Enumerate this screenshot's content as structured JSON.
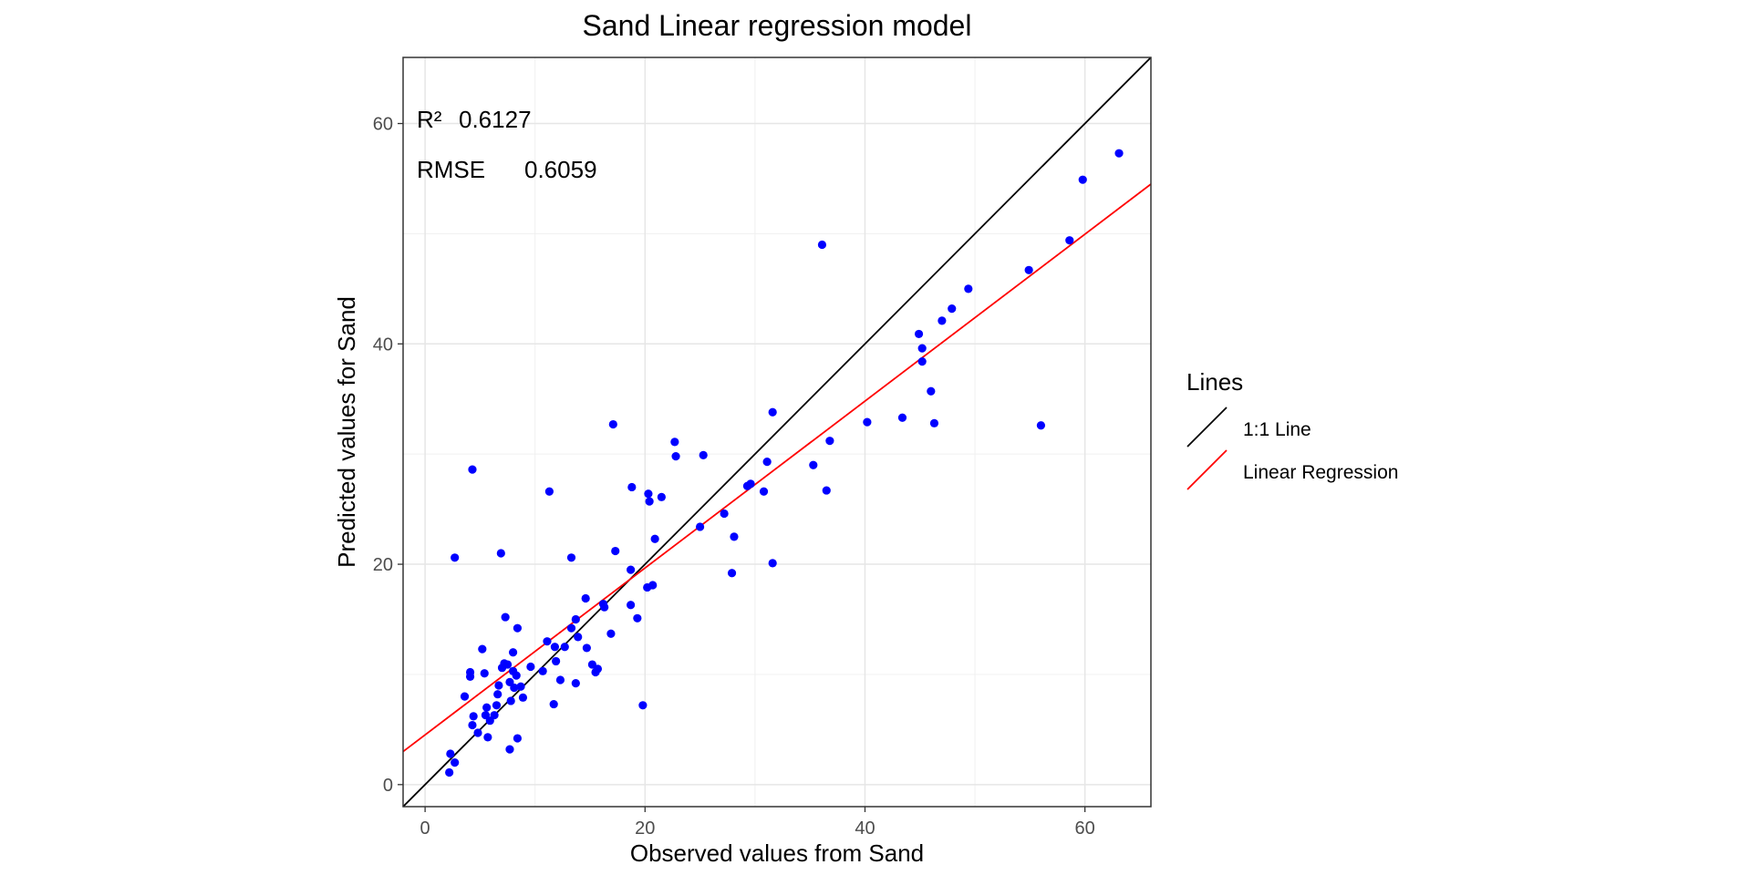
{
  "chart_data": {
    "type": "scatter",
    "title": "Sand  Linear regression model",
    "xlabel": "Observed values from Sand",
    "ylabel": "Predicted values for Sand",
    "xlim": [
      -2,
      66
    ],
    "ylim": [
      -2,
      66
    ],
    "x_ticks": [
      0,
      20,
      40,
      60
    ],
    "y_ticks": [
      0,
      20,
      40,
      60
    ],
    "grid": true,
    "point_color": "#0000ff",
    "annotations": {
      "r2_label": "R²",
      "r2_value": "0.6127",
      "rmse_label": "RMSE",
      "rmse_value": "0.6059"
    },
    "legend": {
      "title": "Lines",
      "placement": "right",
      "items": [
        {
          "label": "1:1 Line",
          "color": "#000000"
        },
        {
          "label": "Linear Regression",
          "color": "#ff0000"
        }
      ]
    },
    "lines": [
      {
        "name": "1:1 Line",
        "color": "#000000",
        "x": [
          -2,
          66
        ],
        "y": [
          -2,
          66
        ]
      },
      {
        "name": "Linear Regression",
        "color": "#ff0000",
        "x": [
          -2,
          66
        ],
        "y": [
          3,
          54.5
        ]
      }
    ],
    "points": [
      [
        2.2,
        1.1
      ],
      [
        2.3,
        2.8
      ],
      [
        2.7,
        2.0
      ],
      [
        2.7,
        20.6
      ],
      [
        3.6,
        8.0
      ],
      [
        4.1,
        9.8
      ],
      [
        4.1,
        10.2
      ],
      [
        4.3,
        5.4
      ],
      [
        4.3,
        28.6
      ],
      [
        4.4,
        6.2
      ],
      [
        4.8,
        4.7
      ],
      [
        5.2,
        12.3
      ],
      [
        5.4,
        10.1
      ],
      [
        5.5,
        6.3
      ],
      [
        5.6,
        7.0
      ],
      [
        5.7,
        4.3
      ],
      [
        5.9,
        5.8
      ],
      [
        6.3,
        6.3
      ],
      [
        6.5,
        7.2
      ],
      [
        6.6,
        8.2
      ],
      [
        6.7,
        9.0
      ],
      [
        6.9,
        21.0
      ],
      [
        7.0,
        10.6
      ],
      [
        7.2,
        11.0
      ],
      [
        7.3,
        15.2
      ],
      [
        7.5,
        10.9
      ],
      [
        7.7,
        3.2
      ],
      [
        7.7,
        9.3
      ],
      [
        7.8,
        7.6
      ],
      [
        8.0,
        10.3
      ],
      [
        8.0,
        12.0
      ],
      [
        8.1,
        8.8
      ],
      [
        8.3,
        9.9
      ],
      [
        8.4,
        4.2
      ],
      [
        8.4,
        14.2
      ],
      [
        8.7,
        8.9
      ],
      [
        8.9,
        7.9
      ],
      [
        9.6,
        10.7
      ],
      [
        10.7,
        10.3
      ],
      [
        11.1,
        13.0
      ],
      [
        11.3,
        26.6
      ],
      [
        11.7,
        7.3
      ],
      [
        11.8,
        12.5
      ],
      [
        11.9,
        11.2
      ],
      [
        12.3,
        9.5
      ],
      [
        12.7,
        12.5
      ],
      [
        13.3,
        14.2
      ],
      [
        13.3,
        20.6
      ],
      [
        13.7,
        15.0
      ],
      [
        13.7,
        9.2
      ],
      [
        13.9,
        13.4
      ],
      [
        14.6,
        16.9
      ],
      [
        14.7,
        12.4
      ],
      [
        15.2,
        10.9
      ],
      [
        15.5,
        10.2
      ],
      [
        15.7,
        10.5
      ],
      [
        16.2,
        16.4
      ],
      [
        16.3,
        16.1
      ],
      [
        16.9,
        13.7
      ],
      [
        17.1,
        32.7
      ],
      [
        17.3,
        21.2
      ],
      [
        18.7,
        16.3
      ],
      [
        18.7,
        19.5
      ],
      [
        18.8,
        27.0
      ],
      [
        19.3,
        15.1
      ],
      [
        19.8,
        7.2
      ],
      [
        20.2,
        17.9
      ],
      [
        20.3,
        26.4
      ],
      [
        20.4,
        25.7
      ],
      [
        20.7,
        18.1
      ],
      [
        20.9,
        22.3
      ],
      [
        21.5,
        26.1
      ],
      [
        22.7,
        31.1
      ],
      [
        22.8,
        29.8
      ],
      [
        25.0,
        23.4
      ],
      [
        25.3,
        29.9
      ],
      [
        27.2,
        24.6
      ],
      [
        27.9,
        19.2
      ],
      [
        28.1,
        22.5
      ],
      [
        29.3,
        27.1
      ],
      [
        29.6,
        27.3
      ],
      [
        30.8,
        26.6
      ],
      [
        31.1,
        29.3
      ],
      [
        31.6,
        33.8
      ],
      [
        31.6,
        20.1
      ],
      [
        35.3,
        29.0
      ],
      [
        36.1,
        49.0
      ],
      [
        36.5,
        26.7
      ],
      [
        36.8,
        31.2
      ],
      [
        40.2,
        32.9
      ],
      [
        43.4,
        33.3
      ],
      [
        44.9,
        40.9
      ],
      [
        45.2,
        39.6
      ],
      [
        45.2,
        38.4
      ],
      [
        46.0,
        35.7
      ],
      [
        46.3,
        32.8
      ],
      [
        47.0,
        42.1
      ],
      [
        47.9,
        43.2
      ],
      [
        49.4,
        45.0
      ],
      [
        54.9,
        46.7
      ],
      [
        56.0,
        32.6
      ],
      [
        58.6,
        49.4
      ],
      [
        59.8,
        54.9
      ],
      [
        63.1,
        57.3
      ]
    ]
  }
}
